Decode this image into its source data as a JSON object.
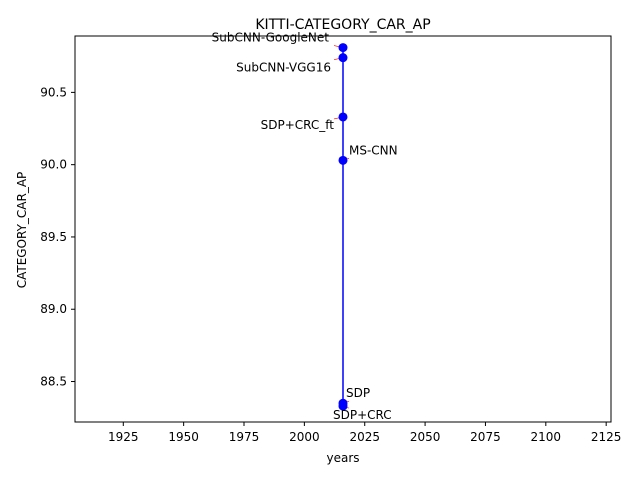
{
  "chart_data": {
    "type": "line",
    "title": "KITTI-CATEGORY_CAR_AP",
    "xlabel": "years",
    "ylabel": "CATEGORY_CAR_AP",
    "xlim": [
      1905,
      2127
    ],
    "ylim": [
      88.22,
      90.89
    ],
    "xticks": [
      1925,
      1950,
      1975,
      2000,
      2025,
      2050,
      2075,
      2100,
      2125
    ],
    "xtick_labels": [
      "1925",
      "1950",
      "1975",
      "2000",
      "2025",
      "2050",
      "2075",
      "2100",
      "2125"
    ],
    "yticks": [
      88.5,
      89.0,
      89.5,
      90.0,
      90.5
    ],
    "ytick_labels": [
      "88.5",
      "89.0",
      "89.5",
      "90.0",
      "90.5"
    ],
    "grid": false,
    "series": [
      {
        "color": "#0000ff",
        "points": [
          {
            "x": 2016,
            "y": 90.81,
            "label": "SubCNN-GoogleNet"
          },
          {
            "x": 2016,
            "y": 90.74,
            "label": "SubCNN-VGG16"
          },
          {
            "x": 2016,
            "y": 90.33,
            "label": "SDP+CRC_ft"
          },
          {
            "x": 2016,
            "y": 90.03,
            "label": "MS-CNN"
          },
          {
            "x": 2016,
            "y": 88.35,
            "label": "SDP"
          },
          {
            "x": 2016,
            "y": 88.33,
            "label": "SDP+CRC"
          }
        ]
      }
    ],
    "annotation_arrow_color": "#ff0000"
  }
}
